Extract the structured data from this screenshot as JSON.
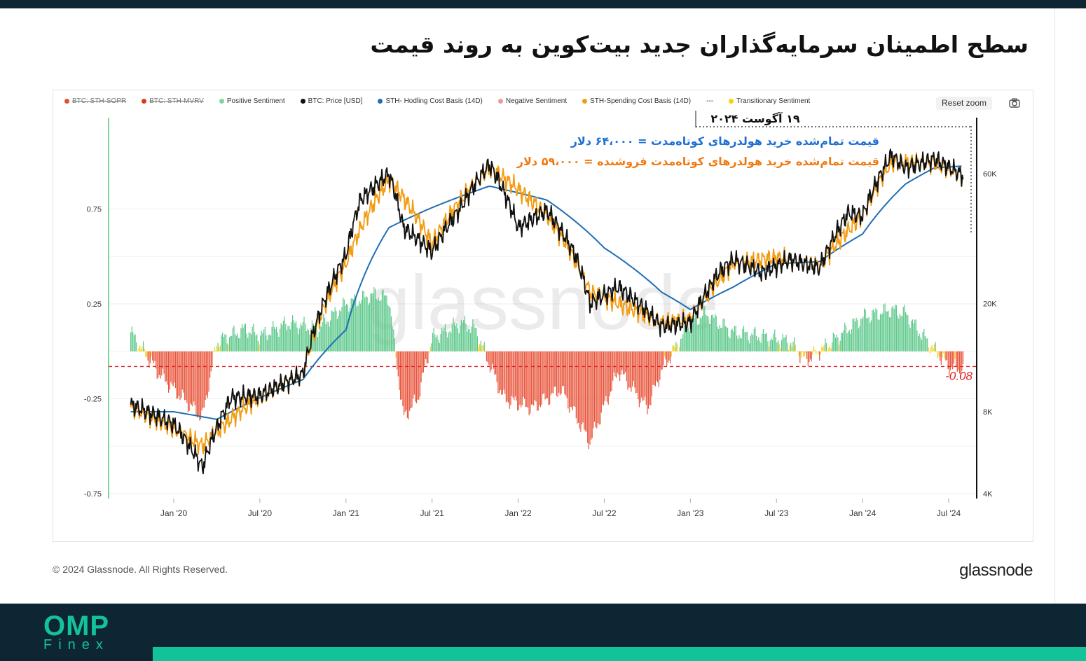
{
  "title": "سطح اطمینان سرمایه‌گذاران جدید بیت‌کوین به روند قیمت",
  "legend": [
    {
      "label": "BTC: STH-SOPR",
      "color": "#e0522a",
      "disabled": true
    },
    {
      "label": "BTC: STH-MVRV",
      "color": "#d93a1f",
      "disabled": true
    },
    {
      "label": "Positive Sentiment",
      "color": "#7fd49b",
      "disabled": false
    },
    {
      "label": "BTC: Price [USD]",
      "color": "#111111",
      "disabled": false
    },
    {
      "label": "STH- Hodling Cost Basis (14D)",
      "color": "#1f6fb5",
      "disabled": false
    },
    {
      "label": "Negative Sentiment",
      "color": "#f19a9a",
      "disabled": false
    },
    {
      "label": "STH-Spending Cost Basis (14D)",
      "color": "#f39c12",
      "disabled": false
    },
    {
      "label": "---",
      "color": "",
      "disabled": false
    },
    {
      "label": "Transitionary Sentiment",
      "color": "#f5d20a",
      "disabled": false
    }
  ],
  "reset_zoom": "Reset zoom",
  "camera_icon": "camera-icon",
  "annotations": {
    "date": "۱۹ آگوست ۲۰۲۴",
    "hodl_line": "قیمت تمام‌شده خرید هولدرهای کوتاه‌مدت = ۶۴،۰۰۰ دلار",
    "spend_line": "قیمت تمام‌شده خرید هولدرهای کوتاه‌مدت فروشنده = ۵۹،۰۰۰ دلار",
    "threshold_label": "-0.08"
  },
  "watermark": "glassnode",
  "footer": {
    "copyright": "© 2024 Glassnode. All Rights Reserved.",
    "brand": "glassnode"
  },
  "logo": {
    "top": "OMP",
    "bottom": "Finex"
  },
  "colors": {
    "positive": "#5cc88a",
    "negative": "#e8543a",
    "transitionary": "#f5d20a",
    "price": "#111111",
    "hodling": "#1f6fb5",
    "spending": "#f39c12",
    "threshold": "#e0232a"
  },
  "chart_data": {
    "type": "line",
    "x_ticks": [
      "Jan '20",
      "Jul '20",
      "Jan '21",
      "Jul '21",
      "Jan '22",
      "Jul '22",
      "Jan '23",
      "Jul '23",
      "Jan '24",
      "Jul '24"
    ],
    "y_left_ticks": [
      "0.75",
      "0.25",
      "-0.25",
      "-0.75"
    ],
    "y_left_range": [
      -0.75,
      0.9
    ],
    "y_right_ticks": [
      "60K",
      "20K",
      "8K",
      "4K"
    ],
    "y_right_scale": "log",
    "threshold": -0.08,
    "grid": true,
    "legend_position": "top",
    "series": [
      {
        "name": "BTC: Price [USD]",
        "x": [
          "2019-10",
          "2020-01",
          "2020-03",
          "2020-05",
          "2020-07",
          "2020-10",
          "2021-01",
          "2021-02",
          "2021-04",
          "2021-05",
          "2021-07",
          "2021-09",
          "2021-11",
          "2022-01",
          "2022-03",
          "2022-05",
          "2022-06",
          "2022-08",
          "2022-11",
          "2023-01",
          "2023-03",
          "2023-04",
          "2023-06",
          "2023-08",
          "2023-10",
          "2023-12",
          "2024-01",
          "2024-03",
          "2024-04",
          "2024-06",
          "2024-08"
        ],
        "values": [
          8500,
          7200,
          5000,
          9000,
          9200,
          11000,
          30000,
          48000,
          60000,
          38000,
          31000,
          45000,
          65000,
          38000,
          44000,
          30000,
          20000,
          23000,
          16500,
          17000,
          26000,
          29000,
          26000,
          29000,
          27000,
          43000,
          42000,
          70000,
          63000,
          68000,
          59000
        ]
      },
      {
        "name": "STH- Hodling Cost Basis (14D)",
        "x": [
          "2019-10",
          "2020-01",
          "2020-04",
          "2020-07",
          "2020-10",
          "2021-01",
          "2021-04",
          "2021-07",
          "2021-11",
          "2022-03",
          "2022-07",
          "2022-11",
          "2023-01",
          "2023-04",
          "2023-07",
          "2023-10",
          "2024-01",
          "2024-04",
          "2024-06",
          "2024-08"
        ],
        "values": [
          8000,
          8000,
          7500,
          9000,
          10500,
          16000,
          38000,
          45000,
          54000,
          48000,
          32000,
          22000,
          19000,
          23000,
          28000,
          28500,
          36000,
          55000,
          63000,
          64000
        ]
      },
      {
        "name": "STH-Spending Cost Basis (14D)",
        "x": [
          "2019-10",
          "2020-03",
          "2020-07",
          "2020-10",
          "2021-01",
          "2021-04",
          "2021-07",
          "2021-11",
          "2022-03",
          "2022-06",
          "2022-11",
          "2023-01",
          "2023-04",
          "2023-07",
          "2023-10",
          "2024-01",
          "2024-03",
          "2024-06",
          "2024-08"
        ],
        "values": [
          8300,
          6000,
          9100,
          11000,
          28000,
          57000,
          33000,
          63000,
          42000,
          22000,
          17000,
          17500,
          28000,
          29500,
          27500,
          42000,
          66000,
          66000,
          59000
        ]
      },
      {
        "name": "Sentiment oscillator",
        "x": [
          "2019-10",
          "2019-12",
          "2020-01",
          "2020-03",
          "2020-04",
          "2020-06",
          "2020-07",
          "2020-09",
          "2020-11",
          "2021-01",
          "2021-03",
          "2021-04",
          "2021-05",
          "2021-06",
          "2021-07",
          "2021-09",
          "2021-10",
          "2021-12",
          "2022-02",
          "2022-04",
          "2022-06",
          "2022-08",
          "2022-10",
          "2022-11",
          "2023-01",
          "2023-02",
          "2023-04",
          "2023-06",
          "2023-08",
          "2023-09",
          "2023-10",
          "2024-01",
          "2024-03",
          "2024-04",
          "2024-05",
          "2024-07",
          "2024-08"
        ],
        "values": [
          0.1,
          -0.12,
          -0.2,
          -0.35,
          0.05,
          0.12,
          0.08,
          0.15,
          0.12,
          0.25,
          0.3,
          0.28,
          -0.35,
          -0.25,
          0.07,
          0.15,
          0.12,
          -0.25,
          -0.3,
          -0.2,
          -0.48,
          -0.1,
          -0.3,
          -0.1,
          0.15,
          0.2,
          0.1,
          0.08,
          0.05,
          -0.05,
          0.0,
          0.18,
          0.22,
          0.2,
          0.1,
          -0.08,
          -0.1
        ]
      }
    ]
  }
}
